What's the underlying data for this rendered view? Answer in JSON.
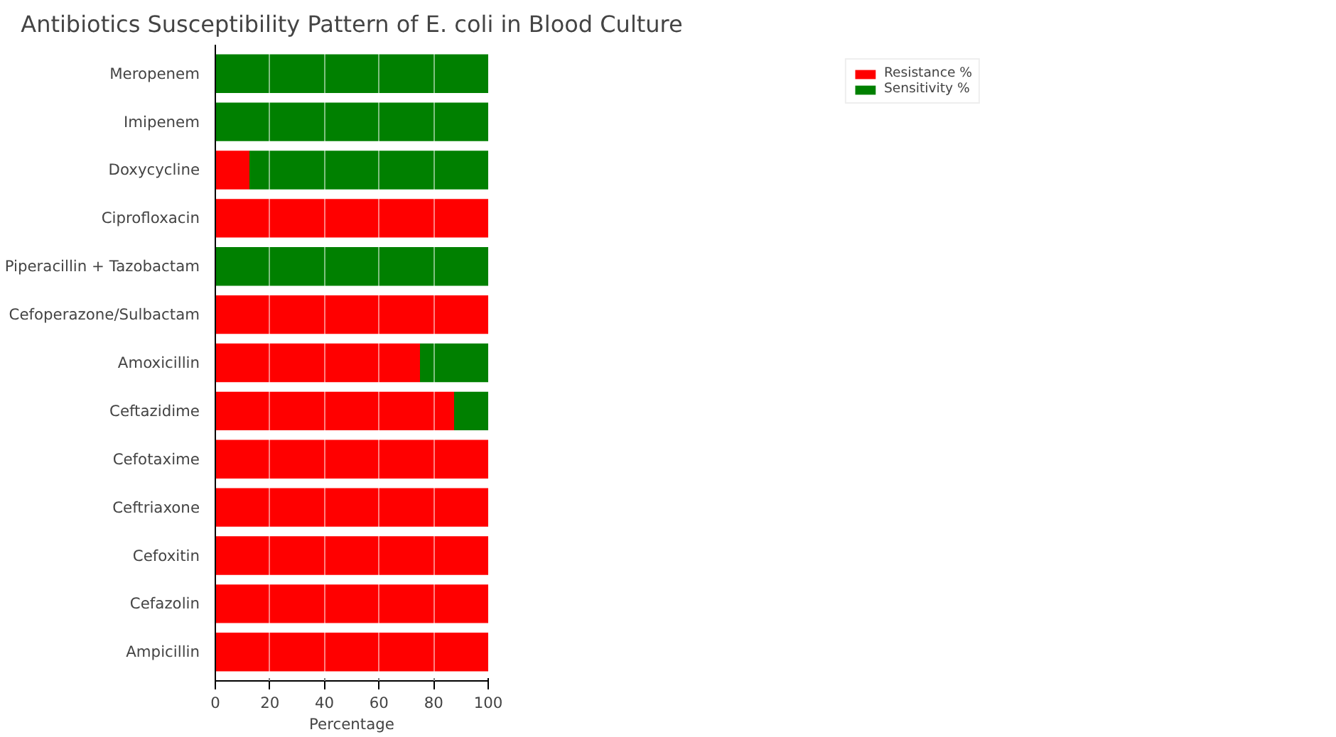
{
  "chart_data": {
    "type": "bar",
    "orientation": "horizontal",
    "stacked": true,
    "title": "Antibiotics Susceptibility Pattern of E. coli in Blood Culture",
    "xlabel": "Percentage",
    "categories": [
      "Meropenem",
      "Imipenem",
      "Doxycycline",
      "Ciprofloxacin",
      "Piperacillin + Tazobactam",
      "Cefoperazone/Sulbactam",
      "Amoxicillin",
      "Ceftazidime",
      "Cefotaxime",
      "Ceftriaxone",
      "Cefoxitin",
      "Cefazolin",
      "Ampicillin"
    ],
    "series": [
      {
        "name": "Resistance %",
        "color": "#ff0000",
        "values": [
          0,
          0,
          12.5,
          100,
          0,
          100,
          75,
          87.5,
          100,
          100,
          100,
          100,
          100
        ]
      },
      {
        "name": "Sensitivity %",
        "color": "#008000",
        "values": [
          100,
          100,
          87.5,
          0,
          100,
          0,
          25,
          12.5,
          0,
          0,
          0,
          0,
          0
        ]
      }
    ],
    "xlim": [
      0,
      100
    ],
    "xticks": [
      0,
      20,
      40,
      60,
      80,
      100
    ],
    "grid": "x",
    "legend": "top right"
  }
}
